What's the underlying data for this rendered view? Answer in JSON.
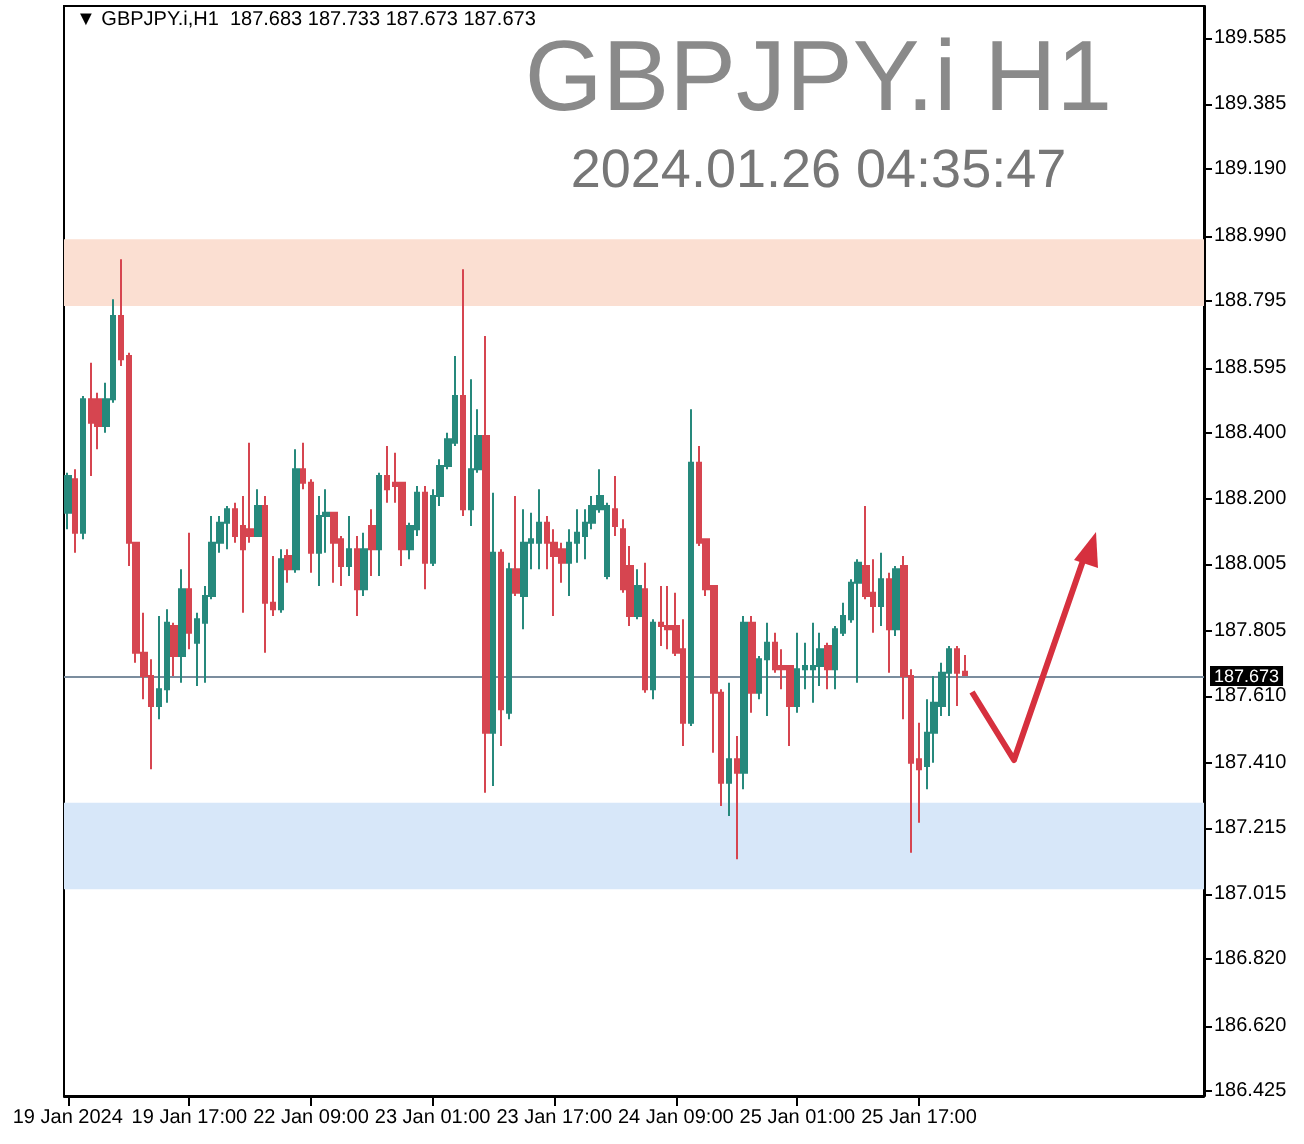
{
  "chart_data": {
    "type": "candlestick",
    "title": "GBPJPY.i H1",
    "subtitle": "2024.01.26 04:35:47",
    "annotations": [
      "▼ GBPJPY.i,H1  187.683 187.733 187.673 187.673"
    ],
    "categories": [
      "19 Jan 2024",
      null,
      null,
      null,
      null,
      null,
      null,
      null,
      null,
      null,
      null,
      null,
      null,
      null,
      null,
      null,
      "19 Jan 17:00",
      null,
      null,
      null,
      null,
      null,
      null,
      null,
      null,
      null,
      null,
      null,
      null,
      null,
      null,
      null,
      "22 Jan 09:00",
      null,
      null,
      null,
      null,
      null,
      null,
      null,
      null,
      null,
      null,
      null,
      null,
      null,
      null,
      null,
      "23 Jan 01:00",
      null,
      null,
      null,
      null,
      null,
      null,
      null,
      null,
      null,
      null,
      null,
      null,
      null,
      null,
      null,
      "23 Jan 17:00",
      null,
      null,
      null,
      null,
      null,
      null,
      null,
      null,
      null,
      null,
      null,
      null,
      null,
      null,
      null,
      "24 Jan 09:00",
      null,
      null,
      null,
      null,
      null,
      null,
      null,
      null,
      null,
      null,
      null,
      null,
      null,
      null,
      null,
      "25 Jan 01:00",
      null,
      null,
      null,
      null,
      null,
      null,
      null,
      null,
      null,
      null,
      null,
      null,
      null,
      null,
      null,
      "25 Jan 17:00",
      null,
      null,
      null,
      null,
      null,
      null,
      null,
      null,
      null,
      null,
      null,
      null,
      null,
      null,
      null,
      null,
      null,
      null,
      null,
      null,
      null,
      null,
      null,
      null,
      null,
      null,
      null,
      null,
      null,
      null,
      null,
      null,
      null,
      null,
      null,
      null,
      null
    ],
    "ohlc": [
      [
        188.16,
        188.28,
        188.11,
        188.27
      ],
      [
        188.26,
        188.29,
        188.04,
        188.1
      ],
      [
        188.1,
        188.51,
        188.08,
        188.5
      ],
      [
        188.5,
        188.61,
        188.27,
        188.43
      ],
      [
        188.5,
        188.52,
        188.35,
        188.42
      ],
      [
        188.42,
        188.55,
        188.4,
        188.5
      ],
      [
        188.5,
        188.8,
        188.49,
        188.75
      ],
      [
        188.75,
        188.92,
        188.6,
        188.62
      ],
      [
        188.63,
        188.64,
        188.0,
        188.07
      ],
      [
        188.07,
        188.07,
        187.71,
        187.74
      ],
      [
        187.74,
        187.86,
        187.6,
        187.67
      ],
      [
        187.67,
        187.72,
        187.39,
        187.58
      ],
      [
        187.58,
        187.85,
        187.54,
        187.63
      ],
      [
        187.63,
        187.87,
        187.59,
        187.83
      ],
      [
        187.82,
        187.83,
        187.67,
        187.73
      ],
      [
        187.73,
        187.99,
        187.65,
        187.93
      ],
      [
        187.93,
        188.1,
        187.75,
        187.8
      ],
      [
        187.77,
        187.86,
        187.64,
        187.84
      ],
      [
        187.83,
        187.94,
        187.65,
        187.91
      ],
      [
        187.91,
        188.15,
        187.9,
        188.07
      ],
      [
        188.07,
        188.15,
        188.04,
        188.13
      ],
      [
        188.13,
        188.18,
        188.05,
        188.17
      ],
      [
        188.17,
        188.19,
        188.07,
        188.09
      ],
      [
        188.12,
        188.21,
        187.86,
        188.05
      ],
      [
        188.11,
        188.37,
        188.07,
        188.09
      ],
      [
        188.09,
        188.23,
        188.09,
        188.18
      ],
      [
        188.18,
        188.21,
        187.74,
        187.89
      ],
      [
        187.89,
        188.03,
        187.85,
        187.87
      ],
      [
        187.87,
        188.05,
        187.86,
        188.02
      ],
      [
        188.03,
        188.05,
        187.95,
        187.99
      ],
      [
        187.99,
        188.35,
        187.98,
        188.29
      ],
      [
        188.29,
        188.37,
        188.23,
        188.25
      ],
      [
        188.25,
        188.26,
        187.98,
        188.04
      ],
      [
        188.04,
        188.21,
        187.94,
        188.15
      ],
      [
        188.15,
        188.23,
        188.04,
        188.16
      ],
      [
        188.16,
        188.16,
        187.95,
        188.07
      ],
      [
        188.08,
        188.09,
        187.94,
        188.0
      ],
      [
        188.0,
        188.15,
        187.97,
        188.05
      ],
      [
        188.05,
        188.09,
        187.85,
        187.93
      ],
      [
        187.93,
        188.1,
        187.91,
        188.05
      ],
      [
        188.12,
        188.17,
        187.97,
        188.05
      ],
      [
        188.05,
        188.28,
        187.97,
        188.27
      ],
      [
        188.27,
        188.36,
        188.19,
        188.23
      ],
      [
        188.25,
        188.34,
        188.19,
        188.24
      ],
      [
        188.25,
        188.25,
        188.0,
        188.05
      ],
      [
        188.05,
        188.13,
        188.02,
        188.12
      ],
      [
        188.11,
        188.24,
        188.09,
        188.22
      ],
      [
        188.22,
        188.24,
        187.93,
        188.01
      ],
      [
        188.01,
        188.23,
        188.0,
        188.21
      ],
      [
        188.21,
        188.32,
        188.18,
        188.3
      ],
      [
        188.3,
        188.4,
        188.29,
        188.38
      ],
      [
        188.37,
        188.63,
        188.36,
        188.51
      ],
      [
        188.51,
        188.89,
        188.15,
        188.17
      ],
      [
        188.17,
        188.56,
        188.12,
        188.29
      ],
      [
        188.29,
        188.47,
        188.28,
        188.39
      ],
      [
        188.39,
        188.69,
        187.32,
        187.5
      ],
      [
        187.5,
        188.22,
        187.34,
        188.04
      ],
      [
        188.04,
        188.05,
        187.46,
        187.57
      ],
      [
        187.56,
        188.01,
        187.54,
        187.99
      ],
      [
        187.99,
        188.21,
        187.91,
        187.92
      ],
      [
        187.91,
        188.17,
        187.81,
        188.07
      ],
      [
        188.07,
        188.16,
        187.99,
        188.08
      ],
      [
        188.07,
        188.23,
        187.99,
        188.13
      ],
      [
        188.13,
        188.15,
        187.99,
        188.07
      ],
      [
        188.07,
        188.11,
        187.85,
        188.03
      ],
      [
        188.05,
        188.07,
        187.95,
        188.01
      ],
      [
        188.01,
        188.11,
        187.91,
        188.07
      ],
      [
        188.07,
        188.17,
        188.01,
        188.1
      ],
      [
        188.09,
        188.17,
        188.02,
        188.13
      ],
      [
        188.13,
        188.21,
        188.11,
        188.18
      ],
      [
        188.17,
        188.29,
        188.16,
        188.21
      ],
      [
        187.97,
        188.19,
        187.96,
        188.18
      ],
      [
        188.17,
        188.27,
        188.09,
        188.12
      ],
      [
        188.11,
        188.14,
        187.92,
        187.93
      ],
      [
        188.0,
        188.06,
        187.82,
        187.85
      ],
      [
        187.85,
        187.99,
        187.84,
        187.94
      ],
      [
        187.93,
        188.01,
        187.62,
        187.63
      ],
      [
        187.63,
        187.84,
        187.6,
        187.83
      ],
      [
        187.83,
        187.94,
        187.76,
        187.82
      ],
      [
        187.82,
        187.94,
        187.75,
        187.81
      ],
      [
        187.82,
        187.92,
        187.73,
        187.74
      ],
      [
        187.75,
        187.84,
        187.46,
        187.53
      ],
      [
        187.53,
        188.47,
        187.52,
        188.31
      ],
      [
        188.31,
        188.36,
        188.06,
        188.07
      ],
      [
        188.08,
        188.08,
        187.91,
        187.93
      ],
      [
        187.94,
        187.94,
        187.44,
        187.62
      ],
      [
        187.62,
        187.63,
        187.28,
        187.35
      ],
      [
        187.35,
        187.65,
        187.25,
        187.42
      ],
      [
        187.42,
        187.49,
        187.12,
        187.38
      ],
      [
        187.38,
        187.85,
        187.33,
        187.83
      ],
      [
        187.83,
        187.85,
        187.56,
        187.62
      ],
      [
        187.62,
        187.73,
        187.6,
        187.72
      ],
      [
        187.72,
        187.83,
        187.55,
        187.77
      ],
      [
        187.77,
        187.8,
        187.68,
        187.69
      ],
      [
        187.7,
        187.75,
        187.63,
        187.69
      ],
      [
        187.7,
        187.7,
        187.46,
        187.58
      ],
      [
        187.58,
        187.8,
        187.56,
        187.69
      ],
      [
        187.69,
        187.77,
        187.63,
        187.7
      ],
      [
        187.69,
        187.83,
        187.59,
        187.7
      ],
      [
        187.7,
        187.8,
        187.64,
        187.75
      ],
      [
        187.76,
        187.77,
        187.63,
        187.69
      ],
      [
        187.69,
        187.82,
        187.63,
        187.81
      ],
      [
        187.8,
        187.89,
        187.79,
        187.85
      ],
      [
        187.84,
        187.96,
        187.83,
        187.95
      ],
      [
        187.95,
        188.02,
        187.65,
        188.01
      ],
      [
        188.0,
        188.18,
        187.9,
        187.91
      ],
      [
        187.92,
        188.02,
        187.8,
        187.88
      ],
      [
        187.88,
        188.04,
        187.82,
        187.96
      ],
      [
        187.96,
        187.98,
        187.68,
        187.81
      ],
      [
        187.81,
        188.0,
        187.79,
        187.99
      ],
      [
        188.0,
        188.03,
        187.54,
        187.67
      ],
      [
        187.67,
        187.69,
        187.14,
        187.41
      ],
      [
        187.42,
        187.53,
        187.23,
        187.39
      ],
      [
        187.4,
        187.6,
        187.33,
        187.5
      ],
      [
        187.5,
        187.67,
        187.41,
        187.59
      ],
      [
        187.58,
        187.71,
        187.55,
        187.68
      ],
      [
        187.68,
        187.76,
        187.55,
        187.75
      ],
      [
        187.75,
        187.76,
        187.58,
        187.68
      ],
      [
        187.683,
        187.733,
        187.673,
        187.673
      ],
      null,
      null,
      null,
      null,
      null,
      null,
      null,
      null,
      null,
      null,
      null,
      null,
      null,
      null,
      null,
      null,
      null,
      null,
      null,
      null,
      null,
      null,
      null,
      null,
      null,
      null,
      null,
      null,
      null,
      null,
      null
    ],
    "ylim": [
      186.41,
      189.68
    ],
    "yticks": [
      189.585,
      189.385,
      {
        "value": 189.19,
        "label": "189.190"
      },
      {
        "value": 188.99,
        "label": "188.990"
      },
      188.795,
      188.595,
      {
        "value": 188.4,
        "label": "188.400"
      },
      {
        "value": 188.2,
        "label": "188.200"
      },
      188.005,
      187.805,
      {
        "value": 187.61,
        "label": "187.610"
      },
      {
        "value": 187.41,
        "label": "187.410"
      },
      187.215,
      187.015,
      {
        "value": 186.82,
        "label": "186.820"
      },
      {
        "value": 186.62,
        "label": "186.620"
      },
      186.425
    ],
    "ref_lines": [
      {
        "axis": "y",
        "value": 187.673,
        "label": "187.673",
        "color": "#7b8d9e"
      }
    ],
    "bands": [
      {
        "axis": "y",
        "from": 188.78,
        "to": 188.98,
        "color": "#fbdfd2"
      },
      {
        "axis": "y",
        "from": 187.03,
        "to": 187.29,
        "color": "#d7e7f9"
      }
    ],
    "grid": false
  }
}
